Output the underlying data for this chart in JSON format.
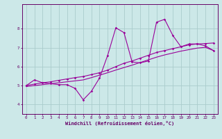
{
  "xlabel": "Windchill (Refroidissement éolien,°C)",
  "bg_color": "#cce8e8",
  "line_color": "#990099",
  "grid_color": "#aacccc",
  "axis_color": "#660066",
  "xlim": [
    -0.5,
    23.5
  ],
  "ylim": [
    3.5,
    9.3
  ],
  "xticks": [
    0,
    1,
    2,
    3,
    4,
    5,
    6,
    7,
    8,
    9,
    10,
    11,
    12,
    13,
    14,
    15,
    16,
    17,
    18,
    19,
    20,
    21,
    22,
    23
  ],
  "yticks": [
    4,
    5,
    6,
    7,
    8
  ],
  "line1_x": [
    0,
    1,
    2,
    3,
    4,
    5,
    6,
    7,
    8,
    9,
    10,
    11,
    12,
    13,
    14,
    15,
    16,
    17,
    18,
    19,
    20,
    21,
    22,
    23
  ],
  "line1_y": [
    5.0,
    5.3,
    5.15,
    5.1,
    5.05,
    5.05,
    4.85,
    4.25,
    4.7,
    5.4,
    6.6,
    8.05,
    7.8,
    6.25,
    6.2,
    6.3,
    8.35,
    8.5,
    7.65,
    7.05,
    7.2,
    7.2,
    7.1,
    6.85
  ],
  "line2_x": [
    0,
    1,
    2,
    3,
    4,
    5,
    6,
    7,
    8,
    9,
    10,
    11,
    12,
    13,
    14,
    15,
    16,
    17,
    18,
    19,
    20,
    21,
    22,
    23
  ],
  "line2_y": [
    5.0,
    5.08,
    5.15,
    5.2,
    5.28,
    5.35,
    5.42,
    5.48,
    5.58,
    5.68,
    5.82,
    6.0,
    6.18,
    6.3,
    6.45,
    6.6,
    6.75,
    6.85,
    6.95,
    7.05,
    7.15,
    7.2,
    7.22,
    7.25
  ],
  "line3_x": [
    0,
    1,
    2,
    3,
    4,
    5,
    6,
    7,
    8,
    9,
    10,
    11,
    12,
    13,
    14,
    15,
    16,
    17,
    18,
    19,
    20,
    21,
    22,
    23
  ],
  "line3_y": [
    4.95,
    5.0,
    5.05,
    5.1,
    5.15,
    5.2,
    5.25,
    5.3,
    5.42,
    5.55,
    5.68,
    5.82,
    5.95,
    6.08,
    6.22,
    6.36,
    6.5,
    6.62,
    6.72,
    6.82,
    6.9,
    6.98,
    7.02,
    6.85
  ]
}
